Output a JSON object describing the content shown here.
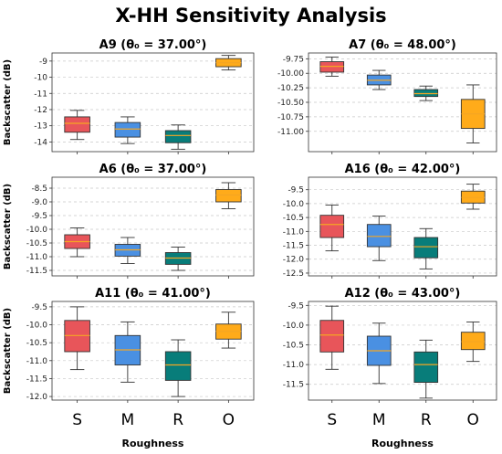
{
  "chart_data": {
    "type": "box",
    "title": "X-HH Sensitivity Analysis",
    "categories": [
      "S",
      "M",
      "R",
      "O"
    ],
    "colors": [
      "#e8555a",
      "#4a90e2",
      "#087d7a",
      "#ffab1a"
    ],
    "xlabel": "Roughness",
    "ylabel": "Backscatter (dB)",
    "panels": [
      {
        "name": "A9",
        "theta": "37.00°",
        "title_text": "A9 (θ₀ = 37.00°)",
        "ylim": [
          -14.6,
          -8.5
        ],
        "yticks": [
          -14,
          -13,
          -12,
          -11,
          -10,
          -9
        ],
        "boxes": [
          {
            "min": -13.85,
            "q1": -13.4,
            "median": -12.85,
            "q3": -12.45,
            "max": -12.05
          },
          {
            "min": -14.1,
            "q1": -13.7,
            "median": -13.2,
            "q3": -12.8,
            "max": -12.45
          },
          {
            "min": -14.45,
            "q1": -14.05,
            "median": -13.6,
            "q3": -13.3,
            "max": -12.95
          },
          {
            "min": -9.55,
            "q1": -9.35,
            "median": -9.1,
            "q3": -8.85,
            "max": -8.65
          }
        ]
      },
      {
        "name": "A7",
        "theta": "48.00°",
        "title_text": "A7 (θ₀ = 48.00°)",
        "ylim": [
          -11.35,
          -9.65
        ],
        "yticks": [
          -11.0,
          -10.75,
          -10.5,
          -10.25,
          -10.0,
          -9.75
        ],
        "boxes": [
          {
            "min": -10.05,
            "q1": -9.98,
            "median": -9.88,
            "q3": -9.8,
            "max": -9.72
          },
          {
            "min": -10.28,
            "q1": -10.2,
            "median": -10.12,
            "q3": -10.03,
            "max": -9.95
          },
          {
            "min": -10.47,
            "q1": -10.4,
            "median": -10.35,
            "q3": -10.28,
            "max": -10.22
          },
          {
            "min": -11.2,
            "q1": -10.95,
            "median": -10.7,
            "q3": -10.45,
            "max": -10.2
          }
        ]
      },
      {
        "name": "A6",
        "theta": "37.00°",
        "title_text": "A6 (θ₀ = 37.00°)",
        "ylim": [
          -11.7,
          -8.1
        ],
        "yticks": [
          -11.5,
          -11.0,
          -10.5,
          -10.0,
          -9.5,
          -9.0,
          -8.5
        ],
        "boxes": [
          {
            "min": -11.0,
            "q1": -10.7,
            "median": -10.45,
            "q3": -10.2,
            "max": -9.95
          },
          {
            "min": -11.25,
            "q1": -10.98,
            "median": -10.75,
            "q3": -10.55,
            "max": -10.3
          },
          {
            "min": -11.5,
            "q1": -11.28,
            "median": -11.05,
            "q3": -10.85,
            "max": -10.65
          },
          {
            "min": -9.25,
            "q1": -9.0,
            "median": -8.75,
            "q3": -8.55,
            "max": -8.3
          }
        ]
      },
      {
        "name": "A16",
        "theta": "42.00°",
        "title_text": "A16 (θ₀ = 42.00°)",
        "ylim": [
          -12.6,
          -9.05
        ],
        "yticks": [
          -12.5,
          -12.0,
          -11.5,
          -11.0,
          -10.5,
          -10.0,
          -9.5
        ],
        "boxes": [
          {
            "min": -11.7,
            "q1": -11.22,
            "median": -10.75,
            "q3": -10.42,
            "max": -10.05
          },
          {
            "min": -12.05,
            "q1": -11.55,
            "median": -11.18,
            "q3": -10.75,
            "max": -10.45
          },
          {
            "min": -12.35,
            "q1": -11.95,
            "median": -11.55,
            "q3": -11.22,
            "max": -10.9
          },
          {
            "min": -10.2,
            "q1": -9.98,
            "median": -9.78,
            "q3": -9.55,
            "max": -9.3
          }
        ]
      },
      {
        "name": "A11",
        "theta": "41.00°",
        "title_text": "A11 (θ₀ = 41.00°)",
        "ylim": [
          -12.1,
          -9.35
        ],
        "yticks": [
          -12.0,
          -11.5,
          -11.0,
          -10.5,
          -10.0,
          -9.5
        ],
        "boxes": [
          {
            "min": -11.25,
            "q1": -10.75,
            "median": -10.3,
            "q3": -9.88,
            "max": -9.5
          },
          {
            "min": -11.6,
            "q1": -11.12,
            "median": -10.7,
            "q3": -10.3,
            "max": -9.92
          },
          {
            "min": -12.0,
            "q1": -11.55,
            "median": -11.12,
            "q3": -10.75,
            "max": -10.42
          },
          {
            "min": -10.65,
            "q1": -10.4,
            "median": -10.18,
            "q3": -9.98,
            "max": -9.65
          }
        ]
      },
      {
        "name": "A12",
        "theta": "43.00°",
        "title_text": "A12 (θ₀ = 43.00°)",
        "ylim": [
          -11.9,
          -9.4
        ],
        "yticks": [
          -11.5,
          -11.0,
          -10.5,
          -10.0,
          -9.5
        ],
        "boxes": [
          {
            "min": -11.12,
            "q1": -10.68,
            "median": -10.25,
            "q3": -9.88,
            "max": -9.52
          },
          {
            "min": -11.48,
            "q1": -11.02,
            "median": -10.65,
            "q3": -10.28,
            "max": -9.95
          },
          {
            "min": -11.85,
            "q1": -11.45,
            "median": -11.0,
            "q3": -10.68,
            "max": -10.38
          },
          {
            "min": -10.92,
            "q1": -10.62,
            "median": -10.42,
            "q3": -10.18,
            "max": -9.92
          }
        ]
      }
    ]
  }
}
